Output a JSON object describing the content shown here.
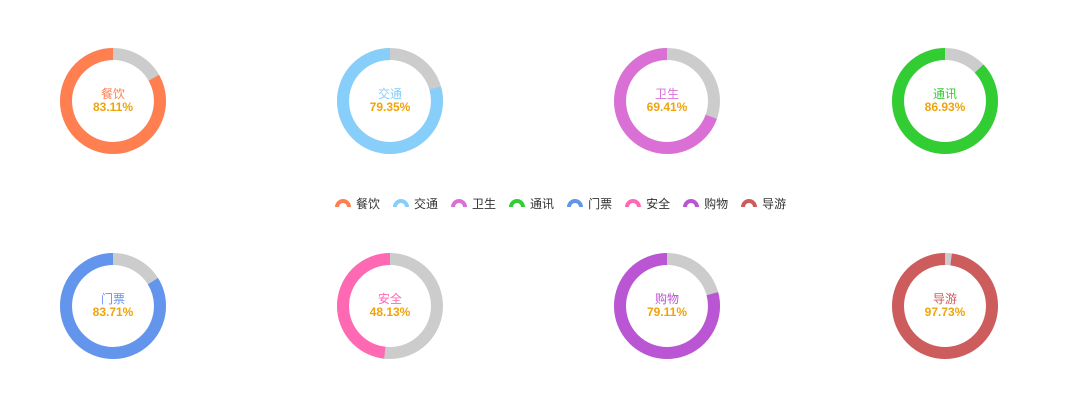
{
  "chart_data": {
    "type": "donut-grid",
    "remainder_color": "#cccccc",
    "pct_color": "#f0a30a",
    "charts": [
      {
        "name": "餐饮",
        "value": 83.11,
        "label": "83.11%",
        "color": "#ff7f50"
      },
      {
        "name": "交通",
        "value": 79.35,
        "label": "79.35%",
        "color": "#87cefa"
      },
      {
        "name": "卫生",
        "value": 69.41,
        "label": "69.41%",
        "color": "#da70d6"
      },
      {
        "name": "通讯",
        "value": 86.93,
        "label": "86.93%",
        "color": "#32cd32"
      },
      {
        "name": "门票",
        "value": 83.71,
        "label": "83.71%",
        "color": "#6495ed"
      },
      {
        "name": "安全",
        "value": 48.13,
        "label": "48.13%",
        "color": "#ff69b4"
      },
      {
        "name": "购物",
        "value": 79.11,
        "label": "79.11%",
        "color": "#ba55d3"
      },
      {
        "name": "导游",
        "value": 97.73,
        "label": "97.73%",
        "color": "#cd5c5c"
      }
    ],
    "legend": [
      "餐饮",
      "交通",
      "卫生",
      "通讯",
      "门票",
      "安全",
      "购物",
      "导游"
    ]
  }
}
